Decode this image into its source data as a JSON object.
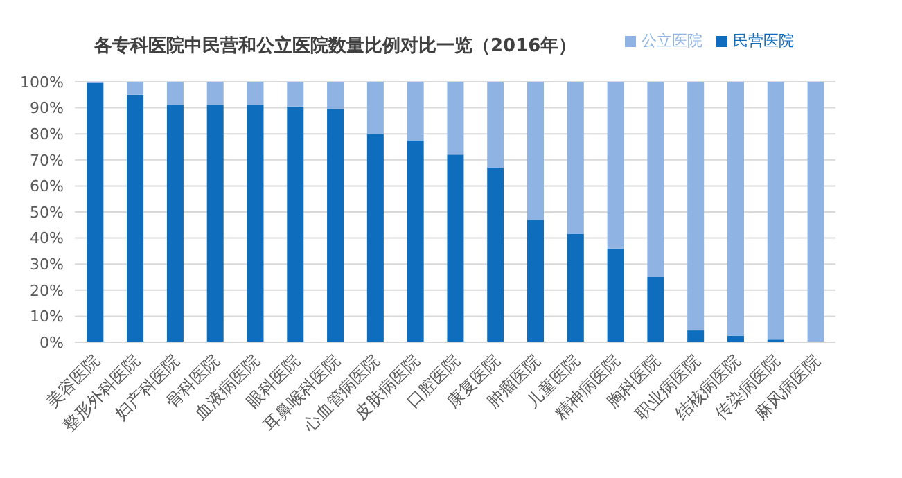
{
  "chart_data": {
    "type": "bar",
    "stacked": true,
    "title": "各专科医院中民营和公立医院数量比例对比一览（2016年）",
    "categories": [
      "美容医院",
      "整形外科医院",
      "妇产科医院",
      "骨科医院",
      "血液病医院",
      "眼科医院",
      "耳鼻喉科医院",
      "心血管病医院",
      "皮肤病医院",
      "口腔医院",
      "康复医院",
      "肿瘤医院",
      "儿童医院",
      "精神病医院",
      "胸科医院",
      "职业病医院",
      "结核病医院",
      "传染病医院",
      "麻风病医院"
    ],
    "series": [
      {
        "name": "民营医院",
        "color": "#0e6ebd",
        "values": [
          99.5,
          95,
          91,
          91,
          91,
          90.5,
          89.5,
          80,
          77.5,
          72,
          67,
          47,
          41.5,
          36,
          25,
          4.5,
          2.5,
          1,
          0
        ]
      },
      {
        "name": "公立医院",
        "color": "#8fb4e3",
        "values": [
          0.5,
          5,
          9,
          9,
          9,
          9.5,
          10.5,
          20,
          22.5,
          28,
          33,
          53,
          58.5,
          64,
          75,
          95.5,
          97.5,
          99,
          100
        ]
      }
    ],
    "ylim": [
      0,
      100
    ],
    "yticks": [
      {
        "value": 0,
        "label": "0%"
      },
      {
        "value": 10,
        "label": "10%"
      },
      {
        "value": 20,
        "label": "20%"
      },
      {
        "value": 30,
        "label": "30%"
      },
      {
        "value": 40,
        "label": "40%"
      },
      {
        "value": 50,
        "label": "50%"
      },
      {
        "value": 60,
        "label": "60%"
      },
      {
        "value": 70,
        "label": "70%"
      },
      {
        "value": 80,
        "label": "80%"
      },
      {
        "value": 90,
        "label": "90%"
      },
      {
        "value": 100,
        "label": "100%"
      }
    ],
    "grid": "y",
    "legend": "top right"
  }
}
